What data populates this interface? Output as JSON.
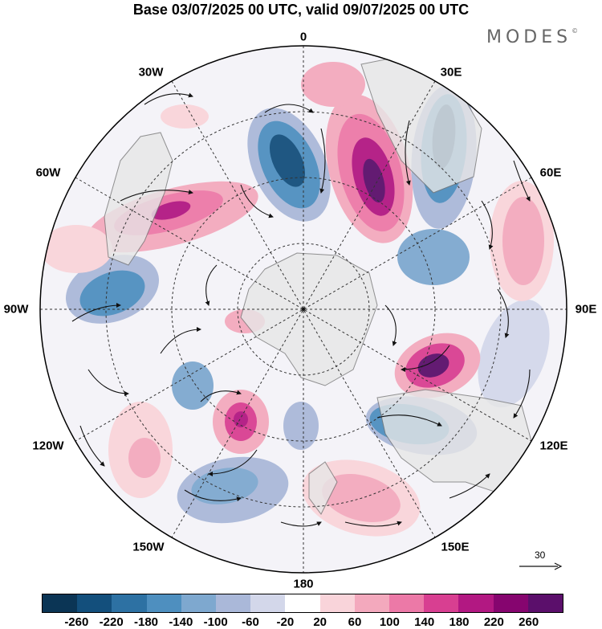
{
  "header": {
    "title": "Base 03/07/2025 00 UTC, valid 09/07/2025 00 UTC",
    "brand": "MODES",
    "brand_mark": "©"
  },
  "map": {
    "projection": "south polar stereographic",
    "longitude_labels": {
      "lon_0": "0",
      "lon_30e": "30E",
      "lon_60e": "60E",
      "lon_90e": "90E",
      "lon_120e": "120E",
      "lon_150e": "150E",
      "lon_180": "180",
      "lon_150w": "150W",
      "lon_120w": "120W",
      "lon_90w": "90W",
      "lon_60w": "60W",
      "lon_30w": "30W"
    },
    "reference_vector": "30"
  },
  "colorbar": {
    "colors": [
      "#0b3555",
      "#134f7c",
      "#2d71a3",
      "#4e8fbf",
      "#7ea8cf",
      "#aab8d9",
      "#d3d7ea",
      "#ffffff",
      "#f9d4da",
      "#f3a9bd",
      "#ec79a7",
      "#d83f91",
      "#b21882",
      "#86056f",
      "#5b0f6b"
    ],
    "ticks": [
      "-260",
      "-220",
      "-180",
      "-140",
      "-100",
      "-60",
      "-20",
      "20",
      "60",
      "100",
      "140",
      "180",
      "220",
      "260"
    ]
  },
  "colors": {
    "land": "#e6e6e6",
    "coast": "#777777",
    "grid": "#333333"
  }
}
